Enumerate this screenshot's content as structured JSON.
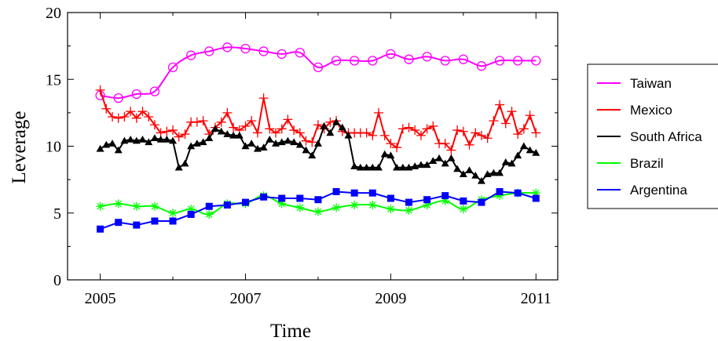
{
  "chart_data": {
    "type": "line",
    "xlabel": "Time",
    "ylabel": "Leverage",
    "xlim": [
      2004.55,
      2011.3
    ],
    "ylim": [
      0,
      20
    ],
    "xticks": [
      2005,
      2007,
      2009,
      2011
    ],
    "yticks": [
      0,
      5,
      10,
      15,
      20
    ],
    "legend_position": "right",
    "grid": false,
    "series": [
      {
        "name": "Taiwan",
        "color": "#ff00ff",
        "marker": "circle",
        "x": [
          2005,
          2005.25,
          2005.5,
          2005.75,
          2006,
          2006.25,
          2006.5,
          2006.75,
          2007,
          2007.25,
          2007.5,
          2007.75,
          2008,
          2008.25,
          2008.5,
          2008.75,
          2009,
          2009.25,
          2009.5,
          2009.75,
          2010,
          2010.25,
          2010.5,
          2010.75,
          2011
        ],
        "values": [
          13.8,
          13.6,
          13.9,
          14.1,
          15.9,
          16.8,
          17.1,
          17.4,
          17.3,
          17.1,
          16.9,
          17.0,
          15.9,
          16.4,
          16.4,
          16.4,
          16.9,
          16.5,
          16.7,
          16.4,
          16.5,
          16.0,
          16.4,
          16.4,
          16.4
        ]
      },
      {
        "name": "Mexico",
        "color": "#ff0000",
        "marker": "plus",
        "x": [
          2005,
          2005.083,
          2005.167,
          2005.25,
          2005.333,
          2005.417,
          2005.5,
          2005.583,
          2005.667,
          2005.75,
          2005.833,
          2005.917,
          2006,
          2006.083,
          2006.167,
          2006.25,
          2006.333,
          2006.417,
          2006.5,
          2006.583,
          2006.667,
          2006.75,
          2006.833,
          2006.917,
          2007,
          2007.083,
          2007.167,
          2007.25,
          2007.333,
          2007.417,
          2007.5,
          2007.583,
          2007.667,
          2007.75,
          2007.833,
          2007.917,
          2008,
          2008.083,
          2008.167,
          2008.25,
          2008.333,
          2008.417,
          2008.5,
          2008.583,
          2008.667,
          2008.75,
          2008.833,
          2008.917,
          2009,
          2009.083,
          2009.167,
          2009.25,
          2009.333,
          2009.417,
          2009.5,
          2009.583,
          2009.667,
          2009.75,
          2009.833,
          2009.917,
          2010,
          2010.083,
          2010.167,
          2010.25,
          2010.333,
          2010.417,
          2010.5,
          2010.583,
          2010.667,
          2010.75,
          2010.833,
          2010.917,
          2011
        ],
        "values": [
          14.2,
          12.8,
          12.2,
          12.1,
          12.2,
          12.6,
          12.1,
          12.6,
          12.2,
          11.6,
          11.0,
          11.1,
          11.2,
          10.7,
          10.9,
          11.8,
          11.8,
          11.9,
          10.9,
          11.4,
          11.8,
          12.5,
          11.4,
          11.2,
          11.5,
          11.9,
          11.0,
          13.6,
          11.3,
          11.0,
          11.3,
          12.0,
          11.2,
          11.0,
          10.4,
          10.3,
          11.6,
          11.3,
          11.8,
          11.9,
          11.1,
          11.0,
          11.0,
          11.0,
          11.0,
          10.8,
          12.5,
          10.8,
          10.2,
          9.9,
          11.3,
          11.4,
          11.2,
          10.8,
          11.3,
          11.5,
          10.2,
          10.2,
          9.7,
          11.2,
          11.1,
          10.1,
          11.0,
          10.8,
          10.6,
          11.9,
          13.1,
          11.7,
          12.6,
          10.9,
          11.3,
          12.3,
          11.0
        ]
      },
      {
        "name": "South Africa",
        "color": "#000000",
        "marker": "triangle",
        "x": [
          2005,
          2005.083,
          2005.167,
          2005.25,
          2005.333,
          2005.417,
          2005.5,
          2005.583,
          2005.667,
          2005.75,
          2005.833,
          2005.917,
          2006,
          2006.083,
          2006.167,
          2006.25,
          2006.333,
          2006.417,
          2006.5,
          2006.583,
          2006.667,
          2006.75,
          2006.833,
          2006.917,
          2007,
          2007.083,
          2007.167,
          2007.25,
          2007.333,
          2007.417,
          2007.5,
          2007.583,
          2007.667,
          2007.75,
          2007.833,
          2007.917,
          2008,
          2008.083,
          2008.167,
          2008.25,
          2008.333,
          2008.417,
          2008.5,
          2008.583,
          2008.667,
          2008.75,
          2008.833,
          2008.917,
          2009,
          2009.083,
          2009.167,
          2009.25,
          2009.333,
          2009.417,
          2009.5,
          2009.583,
          2009.667,
          2009.75,
          2009.833,
          2009.917,
          2010,
          2010.083,
          2010.167,
          2010.25,
          2010.333,
          2010.417,
          2010.5,
          2010.583,
          2010.667,
          2010.75,
          2010.833,
          2010.917,
          2011
        ],
        "values": [
          9.8,
          10.1,
          10.2,
          9.7,
          10.4,
          10.5,
          10.4,
          10.5,
          10.3,
          10.6,
          10.5,
          10.5,
          10.4,
          8.4,
          8.7,
          10.0,
          10.2,
          10.3,
          10.6,
          11.3,
          11.1,
          10.9,
          10.8,
          10.8,
          10.0,
          10.2,
          9.8,
          9.9,
          10.5,
          10.2,
          10.3,
          10.4,
          10.3,
          10.1,
          9.7,
          9.3,
          10.2,
          11.5,
          11.0,
          11.8,
          11.4,
          10.8,
          8.5,
          8.4,
          8.4,
          8.4,
          8.4,
          9.4,
          9.3,
          8.4,
          8.4,
          8.4,
          8.5,
          8.6,
          8.6,
          8.9,
          9.1,
          8.7,
          9.1,
          8.3,
          7.9,
          8.2,
          7.8,
          7.4,
          7.9,
          8.0,
          8.0,
          8.8,
          8.7,
          9.3,
          10.0,
          9.7,
          9.5
        ]
      },
      {
        "name": "Brazil",
        "color": "#00ff00",
        "marker": "asterisk",
        "x": [
          2005,
          2005.25,
          2005.5,
          2005.75,
          2006,
          2006.25,
          2006.5,
          2006.75,
          2007,
          2007.25,
          2007.5,
          2007.75,
          2008,
          2008.25,
          2008.5,
          2008.75,
          2009,
          2009.25,
          2009.5,
          2009.75,
          2010,
          2010.25,
          2010.5,
          2010.75,
          2011
        ],
        "values": [
          5.5,
          5.7,
          5.5,
          5.5,
          5.0,
          5.3,
          4.9,
          5.7,
          5.7,
          6.3,
          5.7,
          5.4,
          5.1,
          5.4,
          5.6,
          5.6,
          5.3,
          5.2,
          5.6,
          5.9,
          5.3,
          6.0,
          6.3,
          6.5,
          6.5
        ]
      },
      {
        "name": "Argentina",
        "color": "#0000ff",
        "marker": "square",
        "x": [
          2005,
          2005.25,
          2005.5,
          2005.75,
          2006,
          2006.25,
          2006.5,
          2006.75,
          2007,
          2007.25,
          2007.5,
          2007.75,
          2008,
          2008.25,
          2008.5,
          2008.75,
          2009,
          2009.25,
          2009.5,
          2009.75,
          2010,
          2010.25,
          2010.5,
          2010.75,
          2011
        ],
        "values": [
          3.8,
          4.3,
          4.1,
          4.4,
          4.4,
          4.9,
          5.5,
          5.6,
          5.8,
          6.2,
          6.1,
          6.1,
          6.0,
          6.6,
          6.5,
          6.5,
          6.1,
          5.8,
          6.0,
          6.3,
          5.9,
          5.8,
          6.6,
          6.5,
          6.1
        ]
      }
    ]
  }
}
